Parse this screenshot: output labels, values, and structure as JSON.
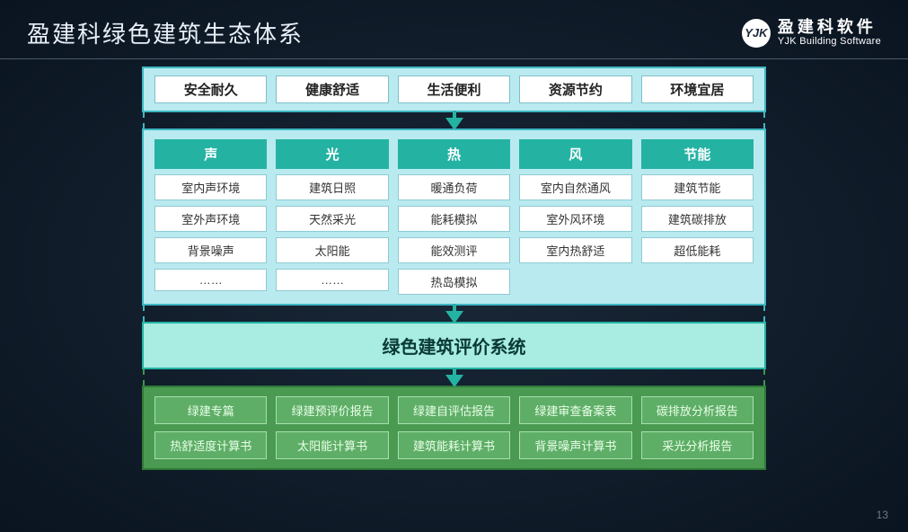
{
  "header": {
    "title": "盈建科绿色建筑生态体系",
    "logo_mark": "YJK",
    "logo_cn": "盈建科软件",
    "logo_en": "YJK Building Software"
  },
  "top_panel": {
    "bg": "#b9eaf0",
    "border": "#3fb7c4",
    "items": [
      "安全耐久",
      "健康舒适",
      "生活便利",
      "资源节约",
      "环境宜居"
    ]
  },
  "mid_panel": {
    "bg": "#b9eaf0",
    "border": "#3fb7c4",
    "header_bg": "#24b3a3",
    "columns": [
      {
        "header": "声",
        "items": [
          "室内声环境",
          "室外声环境",
          "背景噪声",
          "……"
        ]
      },
      {
        "header": "光",
        "items": [
          "建筑日照",
          "天然采光",
          "太阳能",
          "……"
        ]
      },
      {
        "header": "热",
        "items": [
          "暖通负荷",
          "能耗模拟",
          "能效测评",
          "热岛模拟"
        ]
      },
      {
        "header": "风",
        "items": [
          "室内自然通风",
          "室外风环境",
          "室内热舒适"
        ]
      },
      {
        "header": "节能",
        "items": [
          "建筑节能",
          "建筑碳排放",
          "超低能耗"
        ]
      }
    ]
  },
  "eval_panel": {
    "bg": "#a8ece2",
    "border": "#24b3a3",
    "label": "绿色建筑评价系统"
  },
  "bottom_panel": {
    "bg": "#4a9a52",
    "border": "#2f7a38",
    "cell_bg": "#5fae67",
    "cell_border": "#a8e0ae",
    "rows": [
      [
        "绿建专篇",
        "绿建预评价报告",
        "绿建自评估报告",
        "绿建审查备案表",
        "碳排放分析报告"
      ],
      [
        "热舒适度计算书",
        "太阳能计算书",
        "建筑能耗计算书",
        "背景噪声计算书",
        "采光分析报告"
      ]
    ]
  },
  "arrow_color": "#24b3a3",
  "page_number": "13"
}
